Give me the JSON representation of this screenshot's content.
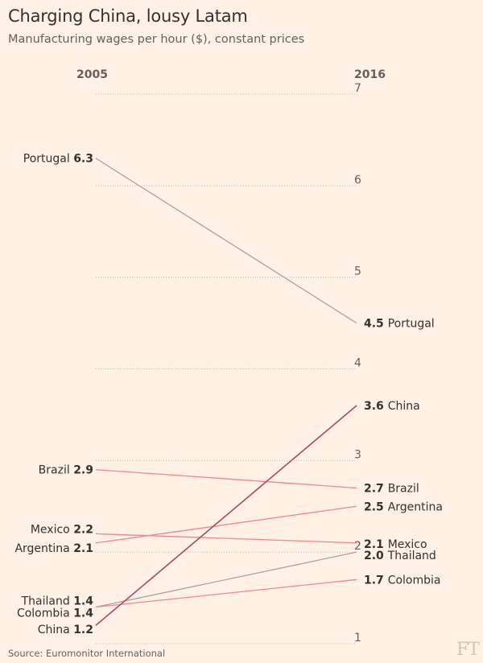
{
  "title": "Charging China, lousy Latam",
  "subtitle": "Manufacturing wages per hour ($), constant prices",
  "source": "Source: Euromonitor International",
  "logo": "FT",
  "colors": {
    "background": "#fff1e5",
    "china": "#a84a67",
    "latam": "#f2858d",
    "other": "#a7a4a0",
    "gridline": "#c2bbb2"
  },
  "chart_data": {
    "type": "slope",
    "title": "Charging China, lousy Latam",
    "subtitle": "Manufacturing wages per hour ($), constant prices",
    "x": [
      "2005",
      "2016"
    ],
    "ylim": [
      1,
      7
    ],
    "yticks": [
      1,
      2,
      3,
      4,
      5,
      6,
      7
    ],
    "series": [
      {
        "name": "Portugal",
        "values": [
          6.3,
          4.5
        ],
        "label_start": "6.3",
        "label_end": "4.5",
        "color": "#a7a4a0"
      },
      {
        "name": "China",
        "values": [
          1.2,
          3.6
        ],
        "label_start": "1.2",
        "label_end": "3.6",
        "color": "#a84a67"
      },
      {
        "name": "Brazil",
        "values": [
          2.9,
          2.7
        ],
        "label_start": "2.9",
        "label_end": "2.7",
        "color": "#f2858d"
      },
      {
        "name": "Argentina",
        "values": [
          2.1,
          2.5
        ],
        "label_start": "2.1",
        "label_end": "2.5",
        "color": "#f2858d"
      },
      {
        "name": "Mexico",
        "values": [
          2.2,
          2.1
        ],
        "label_start": "2.2",
        "label_end": "2.1",
        "color": "#f2858d"
      },
      {
        "name": "Thailand",
        "values": [
          1.4,
          2.0
        ],
        "label_start": "1.4",
        "label_end": "2.0",
        "color": "#a7a4a0"
      },
      {
        "name": "Colombia",
        "values": [
          1.4,
          1.7
        ],
        "label_start": "1.4",
        "label_end": "1.7",
        "color": "#f2858d"
      }
    ],
    "source": "Source: Euromonitor International"
  }
}
